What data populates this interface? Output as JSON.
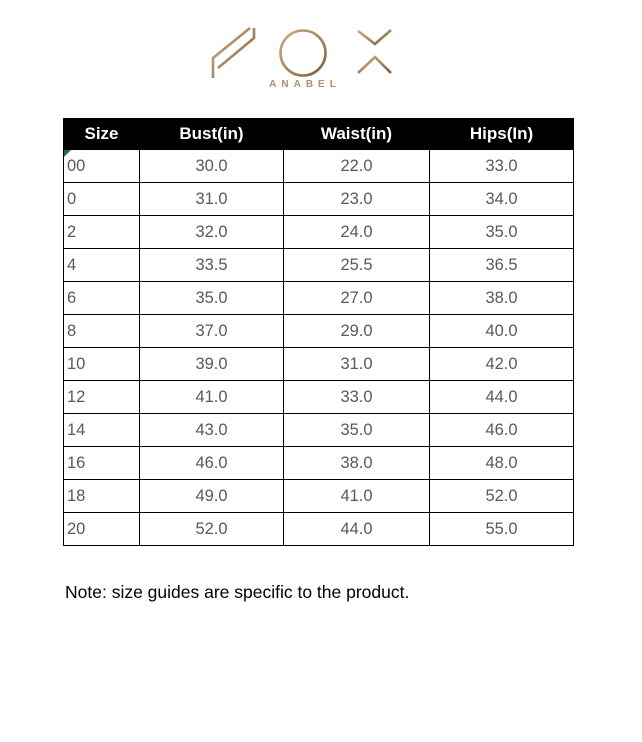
{
  "brand": {
    "name": "NOX",
    "subtitle": "ANABEL",
    "logo_gold_light": "#c9a97f",
    "logo_gold_dark": "#7a5a3c",
    "subtitle_color": "#b08d74"
  },
  "table": {
    "headers": [
      "Size",
      "Bust(in)",
      "Waist(in)",
      "Hips(In)"
    ],
    "rows": [
      [
        "00",
        "30.0",
        "22.0",
        "33.0"
      ],
      [
        "0",
        "31.0",
        "23.0",
        "34.0"
      ],
      [
        "2",
        "32.0",
        "24.0",
        "35.0"
      ],
      [
        "4",
        "33.5",
        "25.5",
        "36.5"
      ],
      [
        "6",
        "35.0",
        "27.0",
        "38.0"
      ],
      [
        "8",
        "37.0",
        "29.0",
        "40.0"
      ],
      [
        "10",
        "39.0",
        "31.0",
        "42.0"
      ],
      [
        "12",
        "41.0",
        "33.0",
        "44.0"
      ],
      [
        "14",
        "43.0",
        "35.0",
        "46.0"
      ],
      [
        "16",
        "46.0",
        "38.0",
        "48.0"
      ],
      [
        "18",
        "49.0",
        "41.0",
        "52.0"
      ],
      [
        "20",
        "52.0",
        "44.0",
        "55.0"
      ]
    ],
    "header_bg": "#000000",
    "header_text_color": "#ffffff",
    "cell_text_color": "#595959",
    "border_color": "#000000",
    "flag_color": "#1e7145"
  },
  "note": "Note: size guides are specific to the product."
}
